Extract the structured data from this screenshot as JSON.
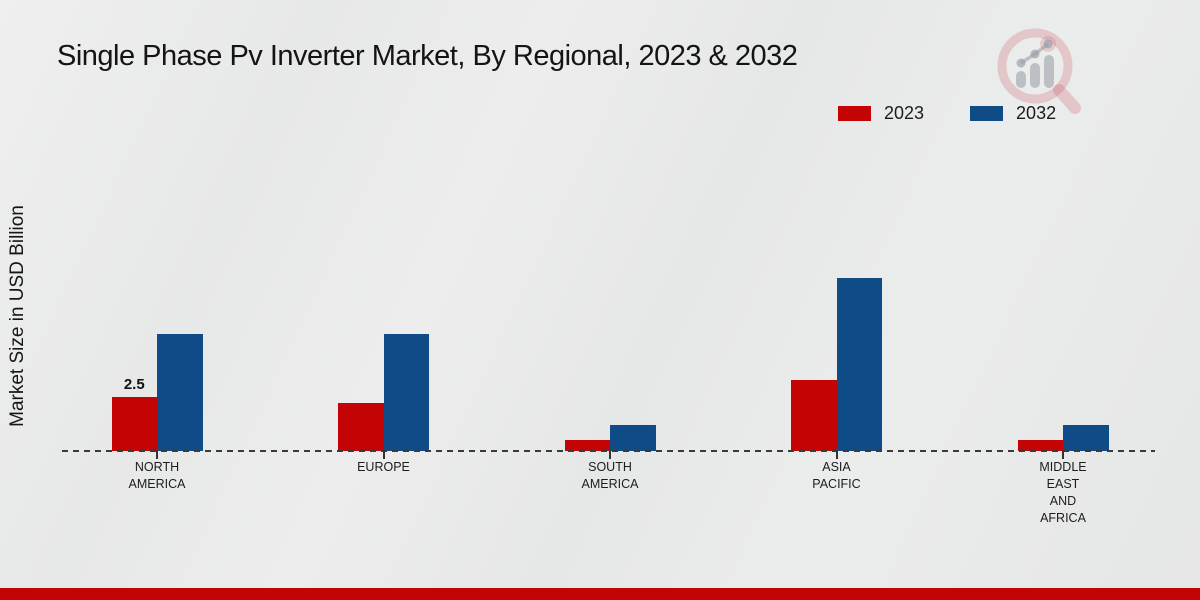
{
  "page": {
    "background_color": "#e8e9e9",
    "footer_bar_color": "#c20404"
  },
  "title": {
    "text": "Single Phase Pv Inverter Market, By Regional, 2023 & 2032"
  },
  "y_axis": {
    "label": "Market Size in USD Billion"
  },
  "legend": {
    "items": [
      {
        "label": "2023",
        "color": "#c40404"
      },
      {
        "label": "2032",
        "color": "#0f4c87"
      }
    ]
  },
  "watermark": {
    "name": "magnifier-bar-chart-logo"
  },
  "chart_data": {
    "type": "bar",
    "title": "Single Phase Pv Inverter Market, By Regional, 2023 & 2032",
    "xlabel": "",
    "ylabel": "Market Size in USD Billion",
    "categories": [
      "NORTH AMERICA",
      "EUROPE",
      "SOUTH AMERICA",
      "ASIA PACIFIC",
      "MIDDLE EAST AND AFRICA"
    ],
    "category_label_lines": [
      [
        "NORTH",
        "AMERICA"
      ],
      [
        "EUROPE"
      ],
      [
        "SOUTH",
        "AMERICA"
      ],
      [
        "ASIA",
        "PACIFIC"
      ],
      [
        "MIDDLE",
        "EAST",
        "AND",
        "AFRICA"
      ]
    ],
    "series": [
      {
        "name": "2023",
        "color": "#c40404",
        "values": [
          2.5,
          2.2,
          0.5,
          3.3,
          0.5
        ]
      },
      {
        "name": "2032",
        "color": "#0f4c87",
        "values": [
          5.4,
          5.4,
          1.2,
          8.0,
          1.2
        ]
      }
    ],
    "data_labels": [
      {
        "series": "2023",
        "category": "NORTH AMERICA",
        "value": 2.5
      }
    ],
    "ylim": [
      0,
      9
    ],
    "grid": false,
    "legend_position": "top-right",
    "baseline_style": "dashed",
    "units": "USD Billion"
  }
}
